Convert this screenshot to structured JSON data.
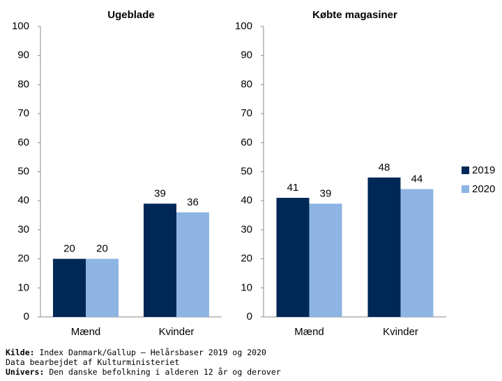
{
  "chart_data": [
    {
      "type": "bar",
      "title": "Ugeblade",
      "categories": [
        "Mænd",
        "Kvinder"
      ],
      "series": [
        {
          "color": "#002856",
          "values": [
            20,
            39
          ]
        },
        {
          "color": "#8db4e2",
          "values": [
            20,
            36
          ]
        }
      ],
      "ylim": [
        0,
        100
      ],
      "yticks": [
        0,
        10,
        20,
        30,
        40,
        50,
        60,
        70,
        80,
        90,
        100
      ]
    },
    {
      "type": "bar",
      "title": "Købte magasiner",
      "categories": [
        "Mænd",
        "Kvinder"
      ],
      "series": [
        {
          "name": "2019",
          "color": "#002856",
          "values": [
            41,
            48
          ]
        },
        {
          "name": "2020",
          "color": "#8db4e2",
          "values": [
            39,
            44
          ]
        }
      ],
      "ylim": [
        0,
        100
      ],
      "yticks": [
        0,
        10,
        20,
        30,
        40,
        50,
        60,
        70,
        80,
        90,
        100
      ],
      "legend": "right"
    }
  ],
  "notes": [
    {
      "label": "Kilde:",
      "text": "Index Danmark/Gallup – Helårsbaser 2019 og 2020"
    },
    {
      "text": "Data bearbejdet af Kulturministeriet"
    },
    {
      "label": "Univers:",
      "text": "Den danske befolkning i alderen 12 år og derover"
    }
  ]
}
